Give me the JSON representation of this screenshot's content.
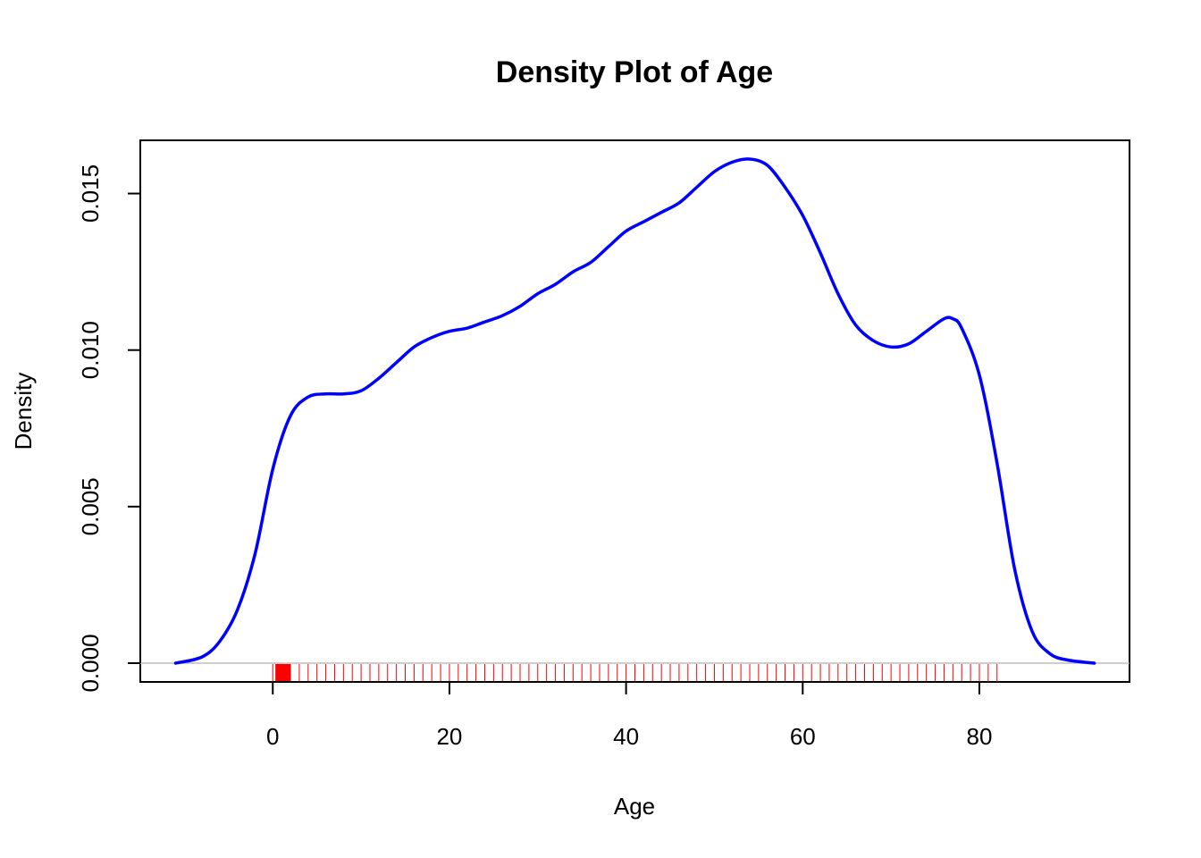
{
  "chart_data": {
    "type": "line",
    "title": "Density Plot of Age",
    "xlabel": "Age",
    "ylabel": "Density",
    "xlim": [
      -15,
      97
    ],
    "ylim": [
      -0.0006,
      0.0167
    ],
    "x_ticks": [
      0,
      20,
      40,
      60,
      80
    ],
    "x_tick_labels": [
      "0",
      "20",
      "40",
      "60",
      "80"
    ],
    "y_ticks": [
      0.0,
      0.005,
      0.01,
      0.015
    ],
    "y_tick_labels": [
      "0.000",
      "0.005",
      "0.010",
      "0.015"
    ],
    "grid": false,
    "legend": "none",
    "series": [
      {
        "color": "#0000ff",
        "x": [
          -11,
          -8,
          -6,
          -4,
          -2,
          0,
          2,
          4,
          6,
          8,
          10,
          12,
          14,
          16,
          18,
          20,
          22,
          24,
          26,
          28,
          30,
          32,
          34,
          36,
          38,
          40,
          42,
          44,
          46,
          48,
          50,
          52,
          54,
          56,
          58,
          60,
          62,
          64,
          66,
          68,
          70,
          72,
          74,
          76,
          77,
          78,
          80,
          82,
          84,
          86,
          88,
          90,
          93
        ],
        "y": [
          0.0,
          0.0002,
          0.0007,
          0.0017,
          0.0035,
          0.0062,
          0.0079,
          0.0085,
          0.0086,
          0.0086,
          0.0087,
          0.0091,
          0.0096,
          0.0101,
          0.0104,
          0.0106,
          0.0107,
          0.0109,
          0.0111,
          0.0114,
          0.0118,
          0.0121,
          0.0125,
          0.0128,
          0.0133,
          0.0138,
          0.0141,
          0.0144,
          0.0147,
          0.0152,
          0.0157,
          0.016,
          0.0161,
          0.0159,
          0.0152,
          0.0143,
          0.0131,
          0.0118,
          0.0108,
          0.0103,
          0.0101,
          0.0102,
          0.0106,
          0.011,
          0.011,
          0.0107,
          0.0092,
          0.0064,
          0.003,
          0.001,
          0.0003,
          0.0001,
          0.0
        ]
      }
    ],
    "rug": {
      "color": "#ff0000",
      "values": [
        0,
        1,
        2,
        3,
        4,
        5,
        6,
        7,
        8,
        9,
        10,
        11,
        12,
        13,
        14,
        15,
        16,
        17,
        18,
        19,
        20,
        21,
        22,
        23,
        24,
        25,
        26,
        27,
        28,
        29,
        30,
        31,
        32,
        33,
        34,
        35,
        36,
        37,
        38,
        39,
        40,
        41,
        42,
        43,
        44,
        45,
        46,
        47,
        48,
        49,
        50,
        51,
        52,
        53,
        54,
        55,
        56,
        57,
        58,
        59,
        60,
        61,
        62,
        63,
        64,
        65,
        66,
        67,
        68,
        69,
        70,
        71,
        72,
        73,
        74,
        75,
        76,
        77,
        78,
        79,
        80,
        81,
        82
      ],
      "dense_values": [
        0.42,
        0.5,
        0.58,
        0.67,
        0.75,
        0.83,
        0.92,
        1.0,
        1.08,
        1.17,
        1.25,
        1.33,
        1.42,
        1.5,
        1.58,
        1.67,
        1.75,
        1.83,
        1.92
      ]
    },
    "baseline": {
      "y": 0,
      "color": "#bebebe"
    }
  }
}
